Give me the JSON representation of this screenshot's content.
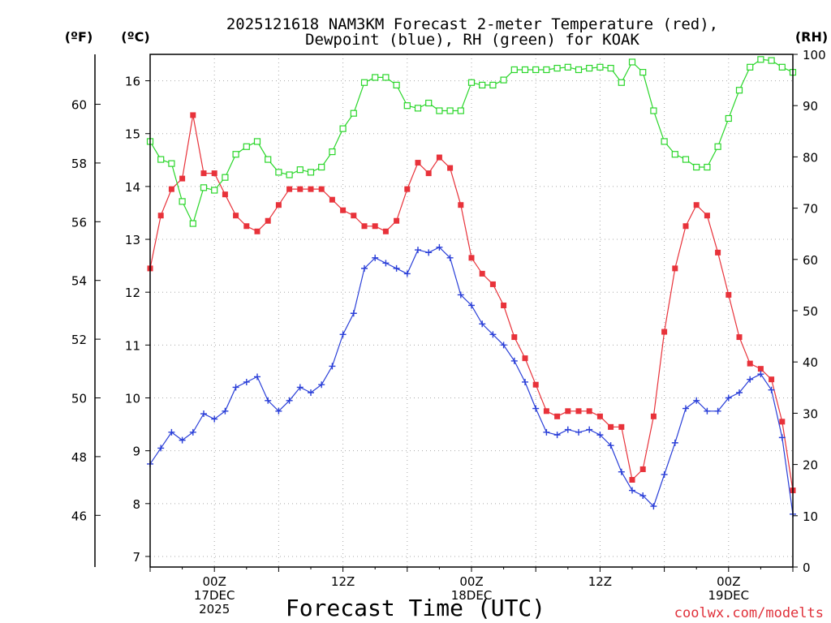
{
  "chart_data": {
    "type": "line",
    "title_line1": "2025121618 NAM3KM Forecast 2-meter Temperature (red),",
    "title_line2": "Dewpoint (blue), RH (green) for KOAK",
    "xlabel": "Forecast Time (UTC)",
    "watermark": "coolwx.com/modelts",
    "units": {
      "fahrenheit": "(ºF)",
      "celsius": "(ºC)",
      "rh": "(RH)"
    },
    "x_hours_start": 18,
    "x_range_hours": [
      0,
      60
    ],
    "x_ticks": [
      {
        "hour": 6,
        "labels": [
          "00Z",
          "17DEC",
          "2025"
        ]
      },
      {
        "hour": 18,
        "labels": [
          "12Z"
        ]
      },
      {
        "hour": 30,
        "labels": [
          "00Z",
          "18DEC"
        ]
      },
      {
        "hour": 42,
        "labels": [
          "12Z"
        ]
      },
      {
        "hour": 54,
        "labels": [
          "00Z",
          "19DEC"
        ]
      }
    ],
    "ylim_c": [
      6.8,
      16.5
    ],
    "yticks_c": [
      7,
      8,
      9,
      10,
      11,
      12,
      13,
      14,
      15,
      16
    ],
    "yticks_f": [
      46,
      48,
      50,
      52,
      54,
      56,
      58,
      60
    ],
    "yticks_rh": [
      0,
      10,
      20,
      30,
      40,
      50,
      60,
      70,
      80,
      90,
      100
    ],
    "series": [
      {
        "name": "Temperature",
        "unit": "C",
        "color": "#e8323a",
        "marker": "filled-square",
        "values": [
          12.45,
          13.45,
          13.95,
          14.15,
          15.35,
          14.25,
          14.25,
          13.85,
          13.45,
          13.25,
          13.15,
          13.35,
          13.65,
          13.95,
          13.95,
          13.95,
          13.95,
          13.75,
          13.55,
          13.45,
          13.25,
          13.25,
          13.15,
          13.35,
          13.95,
          14.45,
          14.25,
          14.55,
          14.35,
          13.65,
          12.65,
          12.35,
          12.15,
          11.75,
          11.15,
          10.75,
          10.25,
          9.75,
          9.65,
          9.75,
          9.75,
          9.75,
          9.65,
          9.45,
          9.45,
          8.45,
          8.65,
          9.65,
          11.25,
          12.45,
          13.25,
          13.65,
          13.45,
          12.75,
          11.95,
          11.15,
          10.65,
          10.55,
          10.35,
          9.55,
          8.25
        ]
      },
      {
        "name": "Dewpoint",
        "unit": "C",
        "color": "#2a3fd8",
        "marker": "plus",
        "values": [
          8.75,
          9.05,
          9.35,
          9.2,
          9.35,
          9.7,
          9.6,
          9.75,
          10.2,
          10.3,
          10.4,
          9.95,
          9.75,
          9.95,
          10.2,
          10.1,
          10.25,
          10.6,
          11.2,
          11.6,
          12.45,
          12.65,
          12.55,
          12.45,
          12.35,
          12.8,
          12.75,
          12.85,
          12.65,
          11.95,
          11.75,
          11.4,
          11.2,
          11.0,
          10.7,
          10.3,
          9.8,
          9.35,
          9.3,
          9.4,
          9.35,
          9.4,
          9.3,
          9.1,
          8.6,
          8.25,
          8.15,
          7.95,
          8.55,
          9.15,
          9.8,
          9.95,
          9.75,
          9.75,
          10.0,
          10.1,
          10.35,
          10.45,
          10.15,
          9.25,
          7.8
        ]
      },
      {
        "name": "RH",
        "unit": "%",
        "color": "#2ad62a",
        "marker": "open-square",
        "values": [
          83,
          79.5,
          78.7,
          71.3,
          67,
          74,
          73.5,
          76,
          80.5,
          82,
          83,
          79.5,
          77,
          76.5,
          77.5,
          77,
          78,
          81,
          85.5,
          88.5,
          94.5,
          95.5,
          95.5,
          94,
          90,
          89.5,
          90.5,
          89,
          89,
          89,
          94.5,
          94,
          94,
          95,
          97,
          97,
          97,
          97,
          97.3,
          97.5,
          97,
          97.3,
          97.5,
          97.3,
          94.5,
          98.5,
          96.5,
          89,
          83,
          80.5,
          79.5,
          78,
          78,
          82,
          87.5,
          93,
          97.5,
          99,
          98.8,
          97.5,
          96.5
        ]
      }
    ]
  }
}
